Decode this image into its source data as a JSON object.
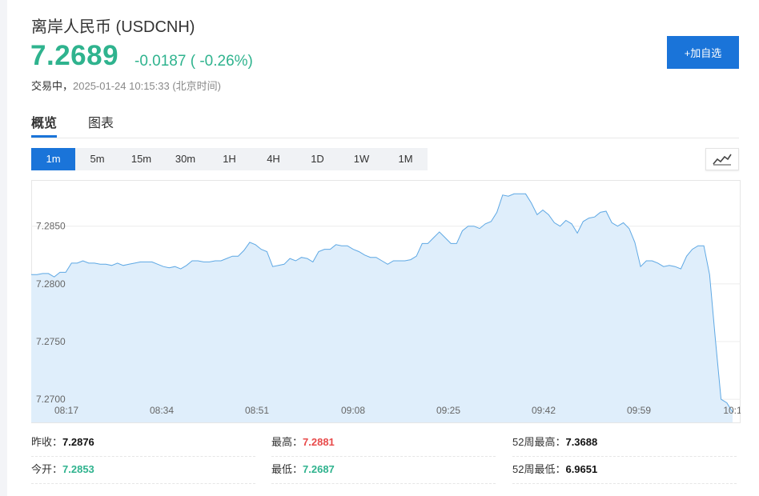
{
  "header": {
    "title": "离岸人民币 (USDCNH)",
    "price": "7.2689",
    "change": "-0.0187 ( -0.26%)",
    "status_label": "交易中，",
    "timestamp": "2025-01-24 10:15:33 (北京时间)",
    "add_button": "+加自选"
  },
  "tabs": [
    {
      "label": "概览"
    },
    {
      "label": "图表"
    }
  ],
  "intervals": [
    {
      "label": "1m"
    },
    {
      "label": "5m"
    },
    {
      "label": "15m"
    },
    {
      "label": "30m"
    },
    {
      "label": "1H"
    },
    {
      "label": "4H"
    },
    {
      "label": "1D"
    },
    {
      "label": "1W"
    },
    {
      "label": "1M"
    }
  ],
  "colors": {
    "accent": "#1a74d9",
    "down": "#2fb38e",
    "up": "#e84a4a",
    "area_fill": "#dfeefb",
    "line": "#5ea8e4"
  },
  "chart_data": {
    "type": "area",
    "x_tick_labels": [
      "08:17",
      "08:34",
      "08:51",
      "09:08",
      "09:25",
      "09:42",
      "09:59",
      "10:1"
    ],
    "y_tick_labels": [
      "7.2850",
      "7.2800",
      "7.2750",
      "7.2700"
    ],
    "ylim": [
      7.268,
      7.289
    ],
    "grid": "horizontal",
    "values": [
      7.2808,
      7.2808,
      7.2809,
      7.2809,
      7.2806,
      7.281,
      7.281,
      7.2818,
      7.2818,
      7.282,
      7.2818,
      7.2818,
      7.2817,
      7.2817,
      7.2816,
      7.2818,
      7.2816,
      7.2817,
      7.2818,
      7.2819,
      7.2819,
      7.2819,
      7.2817,
      7.2815,
      7.2814,
      7.2815,
      7.2813,
      7.2816,
      7.282,
      7.282,
      7.2819,
      7.2819,
      7.282,
      7.282,
      7.2822,
      7.2824,
      7.2824,
      7.2829,
      7.2836,
      7.2834,
      7.283,
      7.2828,
      7.2815,
      7.2816,
      7.2817,
      7.2822,
      7.282,
      7.2823,
      7.2822,
      7.2819,
      7.2828,
      7.283,
      7.283,
      7.2834,
      7.2833,
      7.2833,
      7.283,
      7.2828,
      7.2825,
      7.2823,
      7.2823,
      7.282,
      7.2817,
      7.282,
      7.282,
      7.282,
      7.2821,
      7.2824,
      7.2835,
      7.2835,
      7.284,
      7.2845,
      7.284,
      7.2835,
      7.2835,
      7.2846,
      7.285,
      7.285,
      7.2848,
      7.2852,
      7.2854,
      7.2862,
      7.2877,
      7.2876,
      7.2878,
      7.2878,
      7.2878,
      7.287,
      7.286,
      7.2864,
      7.286,
      7.2853,
      7.285,
      7.2855,
      7.2852,
      7.2844,
      7.2854,
      7.2857,
      7.2858,
      7.2862,
      7.2863,
      7.2853,
      7.285,
      7.2853,
      7.2848,
      7.2836,
      7.2815,
      7.282,
      7.282,
      7.2818,
      7.2815,
      7.2816,
      7.2815,
      7.2813,
      7.2824,
      7.283,
      7.2833,
      7.2833,
      7.2808,
      7.2752,
      7.27,
      7.2697,
      7.2689
    ]
  },
  "stats": {
    "prev_close": {
      "label": "昨收：",
      "value": "7.2876"
    },
    "high": {
      "label": "最高：",
      "value": "7.2881"
    },
    "high_52w": {
      "label": "52周最高：",
      "value": "7.3688"
    },
    "open": {
      "label": "今开：",
      "value": "7.2853"
    },
    "low": {
      "label": "最低：",
      "value": "7.2687"
    },
    "low_52w": {
      "label": "52周最低：",
      "value": "6.9651"
    }
  }
}
